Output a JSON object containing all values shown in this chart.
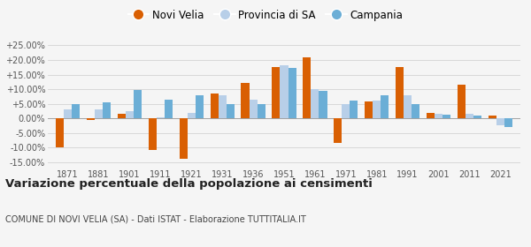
{
  "years": [
    1871,
    1881,
    1901,
    1911,
    1921,
    1931,
    1936,
    1951,
    1961,
    1971,
    1981,
    1991,
    2001,
    2011,
    2021
  ],
  "novi_velia": [
    -10.0,
    -0.5,
    1.5,
    -10.8,
    -14.0,
    8.5,
    12.0,
    17.5,
    21.0,
    -8.5,
    5.8,
    17.5,
    2.0,
    11.5,
    0.8
  ],
  "provincia_sa": [
    3.2,
    3.0,
    2.5,
    0.2,
    1.8,
    8.0,
    6.5,
    18.2,
    10.0,
    5.0,
    6.0,
    8.0,
    1.5,
    1.5,
    -2.5
  ],
  "campania": [
    5.0,
    5.5,
    9.8,
    6.3,
    7.8,
    4.8,
    5.0,
    17.2,
    9.5,
    6.0,
    8.0,
    5.0,
    1.2,
    1.0,
    -3.0
  ],
  "color_novi": "#d95f02",
  "color_provincia": "#b8cfe8",
  "color_campania": "#6baed6",
  "title": "Variazione percentuale della popolazione ai censimenti",
  "subtitle": "COMUNE DI NOVI VELIA (SA) - Dati ISTAT - Elaborazione TUTTITALIA.IT",
  "legend_labels": [
    "Novi Velia",
    "Provincia di SA",
    "Campania"
  ],
  "ylim": [
    -17.0,
    27.0
  ],
  "yticks": [
    -15.0,
    -10.0,
    -5.0,
    0.0,
    5.0,
    10.0,
    15.0,
    20.0,
    25.0
  ],
  "ytick_labels": [
    "-15.00%",
    "-10.00%",
    "-5.00%",
    "0.00%",
    "+5.00%",
    "+10.00%",
    "+15.00%",
    "+20.00%",
    "+25.00%"
  ],
  "background_color": "#f5f5f5"
}
